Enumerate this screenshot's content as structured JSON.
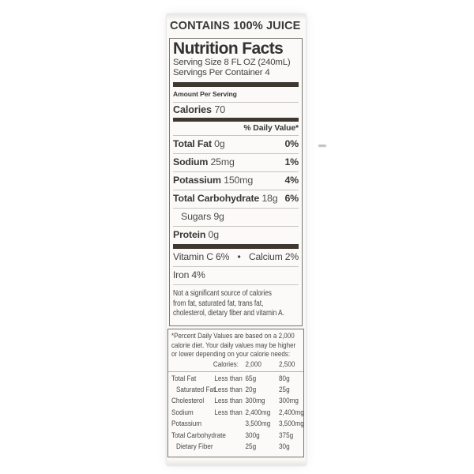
{
  "claim": "CONTAINS 100% JUICE",
  "label": {
    "title": "Nutrition Facts",
    "serving_size": "Serving Size 8 FL OZ (240mL)",
    "servings_per_container": "Servings Per Container 4",
    "amount_per_serving": "Amount Per Serving",
    "calories_label": "Calories",
    "calories_value": "70",
    "daily_value_header": "% Daily Value*",
    "nutrients": [
      {
        "name": "Total Fat",
        "amount": "0g",
        "dv": "0%"
      },
      {
        "name": "Sodium",
        "amount": "25mg",
        "dv": "1%"
      },
      {
        "name": "Potassium",
        "amount": "150mg",
        "dv": "4%"
      },
      {
        "name": "Total Carbohydrate",
        "amount": "18g",
        "dv": "6%"
      },
      {
        "name": "Sugars",
        "amount": "9g",
        "dv": ""
      },
      {
        "name": "Protein",
        "amount": "0g",
        "dv": ""
      }
    ],
    "micronutrients": {
      "left": "Vitamin C 6%",
      "bullet": "•",
      "right": "Calcium 2%",
      "third": "Iron 4%"
    },
    "note_lines": [
      "Not a significant source of calories",
      "from fat, saturated fat, trans fat,",
      "cholesterol, dietary fiber and vitamin A."
    ]
  },
  "footnote": {
    "intro_lines": [
      "*Percent Daily Values are based on a 2,000",
      "calorie diet. Your daily values may be higher",
      "or lower depending on your calorie needs:"
    ],
    "header": {
      "label": "Calories:",
      "col2000": "2,000",
      "col2500": "2,500"
    },
    "rows": [
      {
        "name": "Total Fat",
        "qualifier": "Less than",
        "v2000": "65g",
        "v2500": "80g"
      },
      {
        "name": "Saturated Fat",
        "qualifier": "Less than",
        "v2000": "20g",
        "v2500": "25g"
      },
      {
        "name": "Cholesterol",
        "qualifier": "Less than",
        "v2000": "300mg",
        "v2500": "300mg"
      },
      {
        "name": "Sodium",
        "qualifier": "Less than",
        "v2000": "2,400mg",
        "v2500": "2,400mg"
      },
      {
        "name": "Potassium",
        "qualifier": "",
        "v2000": "3,500mg",
        "v2500": "3,500mg"
      },
      {
        "name": "Total Carbohydrate",
        "qualifier": "",
        "v2000": "300g",
        "v2500": "375g"
      },
      {
        "name": "Dietary Fiber",
        "qualifier": "",
        "v2000": "25g",
        "v2500": "30g"
      }
    ]
  },
  "colors": {
    "separator_bar": "#3e3831",
    "hairline": "#c8c5c0",
    "box_border": "#77756f",
    "text": "#3d3d3d",
    "panel_background": "#faf9f6"
  }
}
